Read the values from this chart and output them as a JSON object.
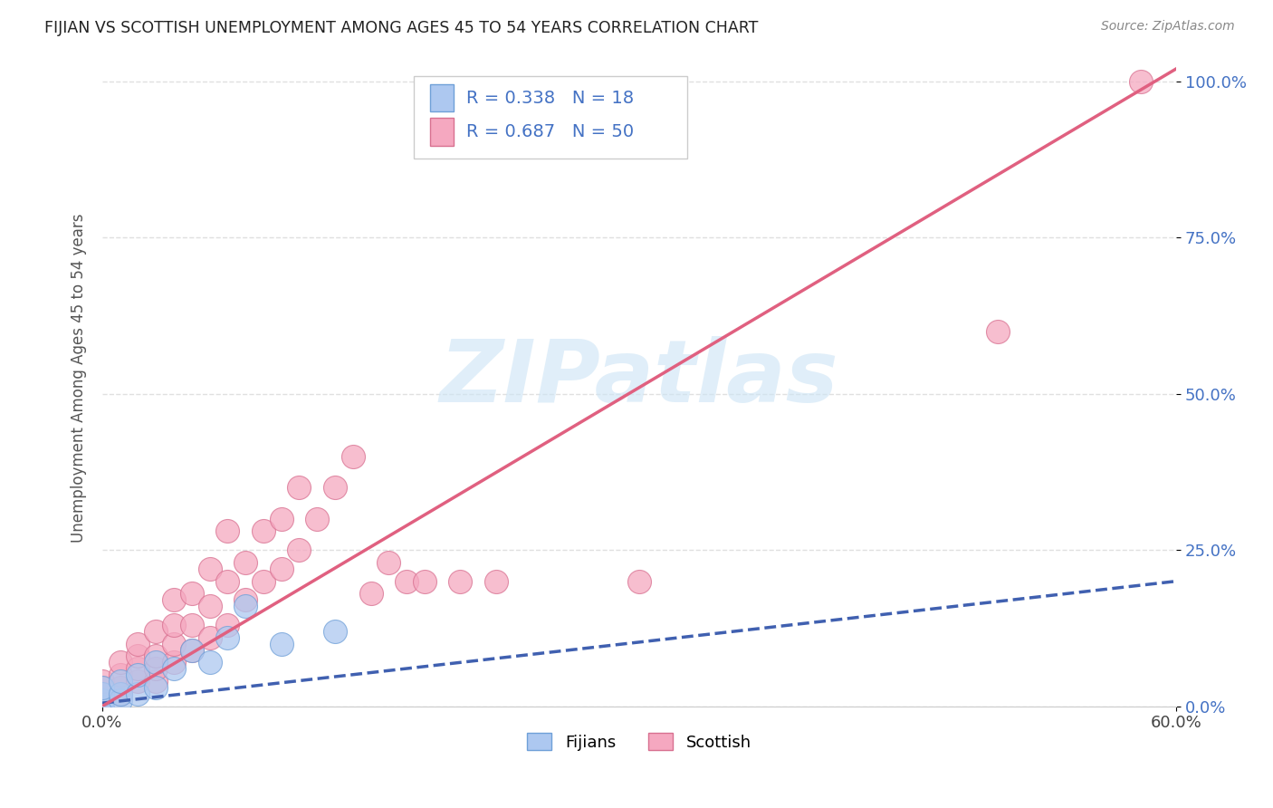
{
  "title": "FIJIAN VS SCOTTISH UNEMPLOYMENT AMONG AGES 45 TO 54 YEARS CORRELATION CHART",
  "source": "Source: ZipAtlas.com",
  "ylabel": "Unemployment Among Ages 45 to 54 years",
  "ytick_labels": [
    "0.0%",
    "25.0%",
    "50.0%",
    "75.0%",
    "100.0%"
  ],
  "ytick_values": [
    0.0,
    0.25,
    0.5,
    0.75,
    1.0
  ],
  "xlim": [
    0.0,
    0.6
  ],
  "ylim": [
    0.0,
    1.05
  ],
  "watermark": "ZIPatlas",
  "fijian_color": "#adc8f0",
  "fijian_edge_color": "#6fa0d8",
  "scottish_color": "#f5a8c0",
  "scottish_edge_color": "#d87090",
  "fijian_line_color": "#4060b0",
  "scottish_line_color": "#e06080",
  "fijian_R": 0.338,
  "fijian_N": 18,
  "scottish_R": 0.687,
  "scottish_N": 50,
  "legend_label_fijian": "Fijians",
  "legend_label_scottish": "Scottish",
  "fijian_points_x": [
    0.0,
    0.0,
    0.0,
    0.0,
    0.01,
    0.01,
    0.01,
    0.02,
    0.02,
    0.03,
    0.03,
    0.04,
    0.05,
    0.06,
    0.07,
    0.08,
    0.1,
    0.13
  ],
  "fijian_points_y": [
    0.0,
    0.01,
    0.02,
    0.03,
    0.01,
    0.02,
    0.04,
    0.02,
    0.05,
    0.03,
    0.07,
    0.06,
    0.09,
    0.07,
    0.11,
    0.16,
    0.1,
    0.12
  ],
  "scottish_points_x": [
    0.0,
    0.0,
    0.0,
    0.0,
    0.0,
    0.01,
    0.01,
    0.01,
    0.01,
    0.02,
    0.02,
    0.02,
    0.02,
    0.03,
    0.03,
    0.03,
    0.03,
    0.04,
    0.04,
    0.04,
    0.04,
    0.05,
    0.05,
    0.05,
    0.06,
    0.06,
    0.06,
    0.07,
    0.07,
    0.07,
    0.08,
    0.08,
    0.09,
    0.09,
    0.1,
    0.1,
    0.11,
    0.11,
    0.12,
    0.13,
    0.14,
    0.15,
    0.16,
    0.17,
    0.18,
    0.2,
    0.22,
    0.3,
    0.5,
    0.58
  ],
  "scottish_points_y": [
    0.01,
    0.01,
    0.02,
    0.03,
    0.04,
    0.02,
    0.03,
    0.05,
    0.07,
    0.04,
    0.06,
    0.08,
    0.1,
    0.04,
    0.06,
    0.08,
    0.12,
    0.07,
    0.1,
    0.13,
    0.17,
    0.09,
    0.13,
    0.18,
    0.11,
    0.16,
    0.22,
    0.13,
    0.2,
    0.28,
    0.17,
    0.23,
    0.2,
    0.28,
    0.22,
    0.3,
    0.25,
    0.35,
    0.3,
    0.35,
    0.4,
    0.18,
    0.23,
    0.2,
    0.2,
    0.2,
    0.2,
    0.2,
    0.6,
    1.0
  ],
  "background_color": "#ffffff",
  "grid_color": "#e0e0e0",
  "fijian_line_x0": 0.0,
  "fijian_line_y0": 0.005,
  "fijian_line_x1": 0.6,
  "fijian_line_y1": 0.2,
  "scottish_line_x0": 0.0,
  "scottish_line_y0": 0.0,
  "scottish_line_x1": 0.6,
  "scottish_line_y1": 1.02
}
